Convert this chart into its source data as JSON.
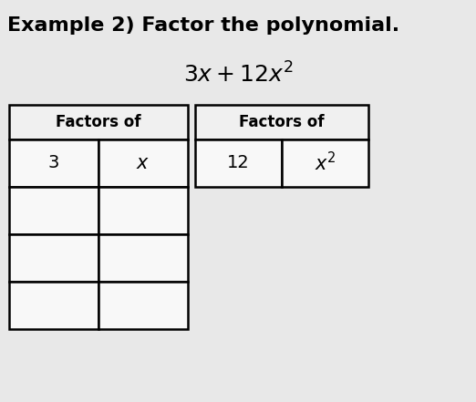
{
  "title_bold": "Example 2) Factor the polynomial.",
  "bg_color": "#c8c8c8",
  "white_bg": "#ffffff",
  "border_color": "#000000",
  "left_header": "Factors of",
  "right_header": "Factors of",
  "left_row1": [
    "3",
    "x"
  ],
  "right_row1": [
    "12",
    "$x^2$"
  ],
  "title_fontsize": 16,
  "math_fontsize": 16,
  "header_fontsize": 12,
  "cell_fontsize": 14,
  "fig_w": 5.22,
  "fig_h": 4.41,
  "dpi": 100
}
